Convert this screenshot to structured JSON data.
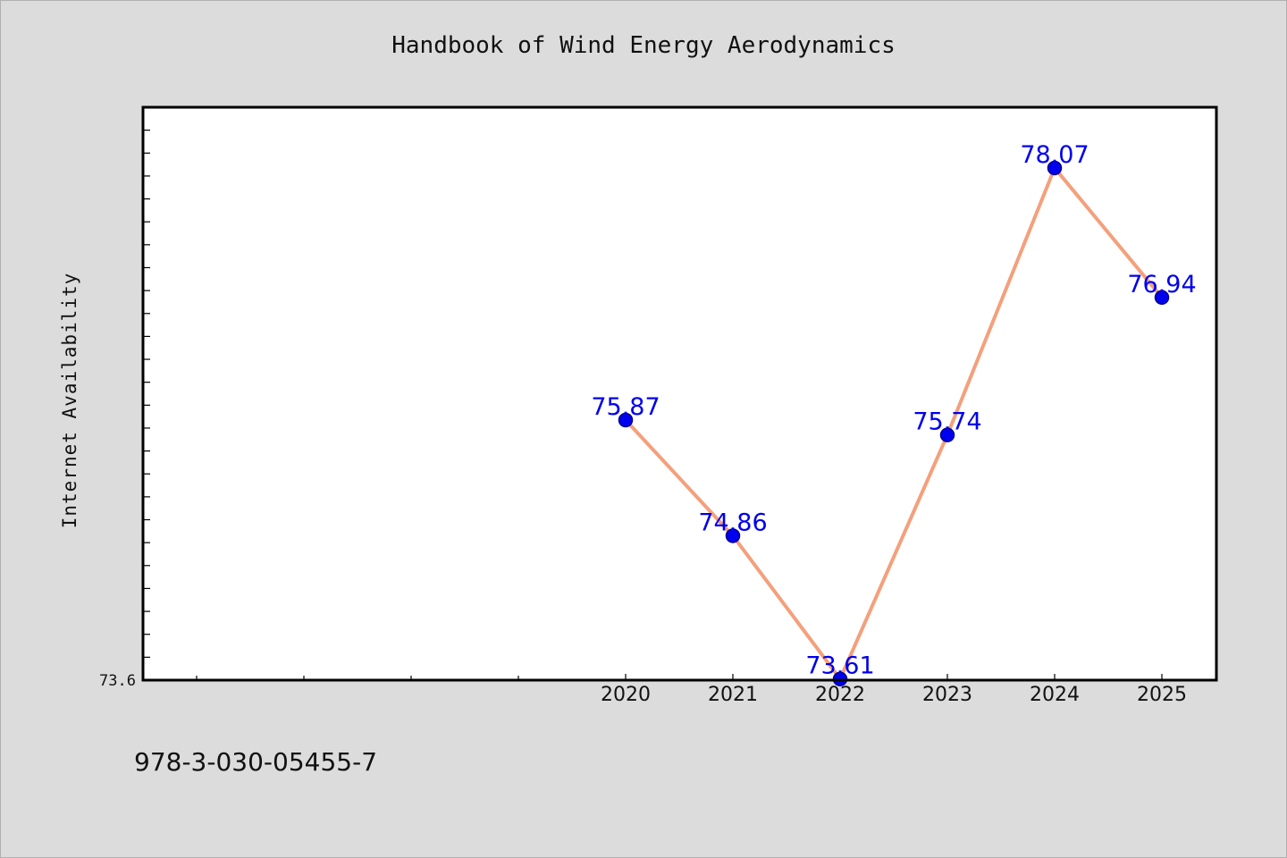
{
  "chart_data": {
    "type": "line",
    "title": "Handbook of Wind Energy Aerodynamics",
    "ylabel": "Internet Availability",
    "xlabel": "",
    "categories": [
      "2020",
      "2021",
      "2022",
      "2023",
      "2024",
      "2025"
    ],
    "series": [
      {
        "values": [
          75.87,
          74.86,
          73.61,
          75.74,
          78.07,
          76.94
        ],
        "labels": [
          "75.87",
          "74.86",
          "73.61",
          "75.74",
          "78.07",
          "76.94"
        ]
      }
    ],
    "y_tick_labels": [
      "73.6"
    ],
    "ylim": [
      73.6,
      78.6
    ],
    "grid": false,
    "legend": "none",
    "colors": {
      "line": "#f4a07c",
      "marker": "#0000ee",
      "marker_edge": "#00008b",
      "data_label": "#0000ee",
      "plot_bg": "#ffffff",
      "page_bg": "#dcdcdc"
    }
  },
  "footer": {
    "isbn": "978-3-030-05455-7"
  }
}
